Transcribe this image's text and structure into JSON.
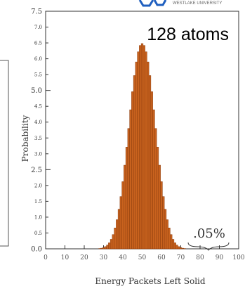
{
  "logo": {
    "text": "WESTLAKE UNIVERSITY",
    "color": "#1f5fbf"
  },
  "annotation": {
    "label": "128 atoms",
    "tail_label": ".05%"
  },
  "colors": {
    "bar_fill": "#c8621e",
    "bar_stroke": "#8a3a0c",
    "axis": "#333333"
  },
  "chart_data": {
    "type": "bar",
    "title": "",
    "xlabel": "Energy Packets Left Solid",
    "ylabel": "Probability",
    "xlim": [
      0,
      100
    ],
    "ylim": [
      0,
      7.5
    ],
    "x_ticks": [
      0,
      10,
      20,
      30,
      40,
      50,
      60,
      70,
      80,
      90,
      100
    ],
    "y_ticks_major": [
      0.0,
      2.5,
      5.0,
      7.5
    ],
    "y_ticks_minor": [
      0.5,
      1.0,
      1.5,
      2.0,
      3.0,
      3.5,
      4.0,
      4.5,
      5.5,
      6.0,
      6.5,
      7.0
    ],
    "x_tick_labels": [
      "0",
      "10",
      "20",
      "30",
      "40",
      "50",
      "60",
      "70",
      "80",
      "90",
      "100"
    ],
    "y_tick_labels": [
      "0.0",
      "0.5",
      "1.0",
      "1.5",
      "2.0",
      "2.5",
      "3.0",
      "3.5",
      "4.0",
      "4.5",
      "5.0",
      "5.5",
      "6.0",
      "6.5",
      "7.0",
      "7.5"
    ],
    "y_tick_values": [
      0.0,
      0.5,
      1.0,
      1.5,
      2.0,
      2.5,
      3.0,
      3.5,
      4.0,
      4.5,
      5.0,
      5.5,
      6.0,
      6.5,
      7.0,
      7.5
    ],
    "x": [
      28,
      29,
      30,
      31,
      32,
      33,
      34,
      35,
      36,
      37,
      38,
      39,
      40,
      41,
      42,
      43,
      44,
      45,
      46,
      47,
      48,
      49,
      50,
      51,
      52,
      53,
      54,
      55,
      56,
      57,
      58,
      59,
      60,
      61,
      62,
      63,
      64,
      65,
      66,
      67,
      68,
      69,
      70,
      71,
      72
    ],
    "values": [
      0.01,
      0.02,
      0.04,
      0.07,
      0.12,
      0.19,
      0.3,
      0.45,
      0.66,
      0.92,
      1.25,
      1.65,
      2.12,
      2.64,
      3.21,
      3.8,
      4.39,
      4.96,
      5.47,
      5.9,
      6.22,
      6.42,
      6.48,
      6.42,
      6.22,
      5.9,
      5.47,
      4.96,
      4.39,
      3.8,
      3.21,
      2.64,
      2.12,
      1.65,
      1.25,
      0.92,
      0.66,
      0.45,
      0.3,
      0.19,
      0.12,
      0.07,
      0.04,
      0.02,
      0.01
    ]
  }
}
